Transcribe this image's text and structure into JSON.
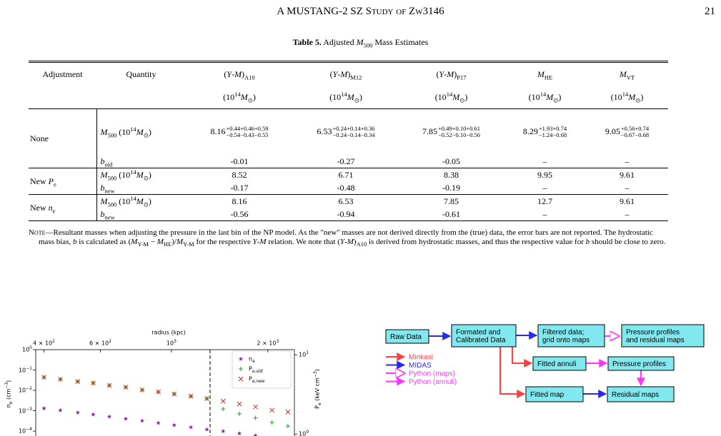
{
  "header": {
    "title": "A MUSTANG-2 SZ Study of Zw3146",
    "page": "21"
  },
  "table": {
    "caption": [
      {
        "b": "Table 5."
      },
      " Adjusted ",
      {
        "it": "M"
      },
      {
        "sub": "500"
      },
      " Mass Estimates"
    ],
    "columns": [
      "Adjustment",
      "Quantity",
      [
        "(",
        {
          "it": "Y"
        },
        "-",
        {
          "it": "M"
        },
        ")",
        {
          "sub": "A10"
        }
      ],
      [
        "(",
        {
          "it": "Y"
        },
        "-",
        {
          "it": "M"
        },
        ")",
        {
          "sub": "M12"
        }
      ],
      [
        "(",
        {
          "it": "Y"
        },
        "-",
        {
          "it": "M"
        },
        ")",
        {
          "sub": "P17"
        }
      ],
      [
        {
          "it": "M"
        },
        {
          "sub": "HE"
        }
      ],
      [
        {
          "it": "M"
        },
        {
          "sub": "VT"
        }
      ]
    ],
    "units": [
      [
        "(10",
        {
          "sup": "14"
        },
        {
          "it": "M"
        },
        {
          "sub": "⊙"
        },
        ")"
      ],
      [
        "(10",
        {
          "sup": "14"
        },
        {
          "it": "M"
        },
        {
          "sub": "⊙"
        },
        ")"
      ],
      [
        "(10",
        {
          "sup": "14"
        },
        {
          "it": "M"
        },
        {
          "sub": "⊙"
        },
        ")"
      ],
      [
        "(10",
        {
          "sup": "14"
        },
        {
          "it": "M"
        },
        {
          "sub": "⊙"
        },
        ")"
      ],
      [
        "(10",
        {
          "sup": "14"
        },
        {
          "it": "M"
        },
        {
          "sub": "⊙"
        },
        ")"
      ]
    ],
    "groups": [
      {
        "adjustment": "None",
        "rows": [
          [
            [
              {
                "it": "M"
              },
              {
                "sub": "500"
              },
              " (10",
              {
                "sup": "14"
              },
              {
                "it": "M"
              },
              {
                "sub": "⊙"
              },
              ")"
            ],
            [
              "8.16",
              {
                "sup": "+0.44+0.46+0.59",
                "sub": "−0.54−0.43−0.55"
              }
            ],
            [
              "6.53",
              {
                "sup": "+0.24+0.14+0.36",
                "sub": "−0.24−0.14−0.34"
              }
            ],
            [
              "7.85",
              {
                "sup": "+0.49+0.10+0.61",
                "sub": "−0.52−0.10−0.56"
              }
            ],
            [
              "8.29",
              {
                "sup": "+1.93+0.74",
                "sub": "−1.24−0.68"
              }
            ],
            [
              "9.05",
              {
                "sup": "+0.56+0.74",
                "sub": "−0.67−0.68"
              }
            ]
          ],
          [
            [
              {
                "it": "b"
              },
              {
                "sub": "old"
              }
            ],
            "-0.01",
            "-0.27",
            "-0.05",
            "–",
            "–"
          ]
        ]
      },
      {
        "adjustment": [
          "New ",
          {
            "it": "P"
          },
          {
            "sub": "e"
          }
        ],
        "rows": [
          [
            [
              {
                "it": "M"
              },
              {
                "sub": "500"
              },
              " (10",
              {
                "sup": "14"
              },
              {
                "it": "M"
              },
              {
                "sub": "⊙"
              },
              ")"
            ],
            "8.52",
            "6.71",
            "8.38",
            "9.95",
            "9.61"
          ],
          [
            [
              {
                "it": "b"
              },
              {
                "sub": "new"
              }
            ],
            "-0.17",
            "-0.48",
            "-0.19",
            "–",
            "–"
          ]
        ]
      },
      {
        "adjustment": [
          "New ",
          {
            "it": "n"
          },
          {
            "sub": "e"
          }
        ],
        "rows": [
          [
            [
              {
                "it": "M"
              },
              {
                "sub": "500"
              },
              " (10",
              {
                "sup": "14"
              },
              {
                "it": "M"
              },
              {
                "sub": "⊙"
              },
              ")"
            ],
            "8.16",
            "6.53",
            "7.85",
            "12.7",
            "9.61"
          ],
          [
            [
              {
                "it": "b"
              },
              {
                "sub": "new"
              }
            ],
            "-0.56",
            "-0.94",
            "-0.61",
            "–",
            "–"
          ]
        ]
      }
    ]
  },
  "note": [
    {
      "sc": "Note"
    },
    "—Resultant masses when adjusting the pressure in the last bin of the NP model. As the \"new\" masses are not derived directly from the (true) data, the error bars are not reported. The hydrostatic mass bias, ",
    {
      "it": "b"
    },
    " is calculated as (",
    {
      "it": "M"
    },
    {
      "sub": "Y-M"
    },
    " − ",
    {
      "it": "M"
    },
    {
      "sub": "HE"
    },
    ")/",
    {
      "it": "M"
    },
    {
      "sub": "Y-M"
    },
    " for the respective ",
    {
      "it": "Y"
    },
    "-",
    {
      "it": "M"
    },
    " relation. We note that (",
    {
      "it": "Y"
    },
    "-",
    {
      "it": "M"
    },
    ")",
    {
      "sub": "A10"
    },
    " is derived from hydrostatic masses, and thus the respective value for ",
    {
      "it": "b"
    },
    " should be close to zero."
  ],
  "figure": {
    "type": "scatter",
    "x_label": "radius (kpc)",
    "y_label": [
      "n",
      {
        "sub": "e"
      },
      " (cm",
      {
        "sup": "−3"
      },
      ")"
    ],
    "y2_label": [
      "P",
      {
        "sub": "e"
      },
      " (keV cm",
      {
        "sup": "−3"
      },
      ")"
    ],
    "log_x": true,
    "log_y": true,
    "xlim": [
      377,
      2420
    ],
    "ylim": [
      3e-05,
      1
    ],
    "y2lim": [
      0.8,
      11.6
    ],
    "xticks": [
      {
        "value": 400,
        "label": [
          "4 × 10",
          {
            "sup": "2"
          }
        ]
      },
      {
        "value": 600,
        "label": [
          "6 × 10",
          {
            "sup": "2"
          }
        ]
      },
      {
        "value": 1000,
        "label": [
          "10",
          {
            "sup": "3"
          }
        ]
      },
      {
        "value": 2000,
        "label": [
          "2 × 10",
          {
            "sup": "3"
          }
        ]
      }
    ],
    "yticks": [
      {
        "value": 1,
        "label": [
          "10",
          {
            "sup": "0"
          }
        ]
      },
      {
        "value": 0.1,
        "label": [
          "10",
          {
            "sup": "−1"
          }
        ]
      },
      {
        "value": 0.01,
        "label": [
          "10",
          {
            "sup": "−2"
          }
        ]
      },
      {
        "value": 0.001,
        "label": [
          "10",
          {
            "sup": "−3"
          }
        ]
      },
      {
        "value": 0.0001,
        "label": [
          "10",
          {
            "sup": "−4"
          }
        ]
      }
    ],
    "y2ticks": [
      {
        "value": 10,
        "label": [
          "10",
          {
            "sup": "1"
          }
        ]
      },
      {
        "value": 1,
        "label": [
          "10",
          {
            "sup": "0"
          }
        ]
      }
    ],
    "vline": 1320,
    "x": [
      400,
      450,
      510,
      570,
      640,
      720,
      810,
      910,
      1020,
      1150,
      1290,
      1450,
      1630,
      1830,
      2060,
      2310
    ],
    "series": [
      {
        "name": [
          "n",
          {
            "sub": "e"
          }
        ],
        "color": "#7b2a8e",
        "marker": "star",
        "values": [
          0.0013,
          0.00105,
          0.00081,
          0.00065,
          0.00051,
          0.0004,
          0.00032,
          0.00025,
          0.000195,
          0.000155,
          0.00012,
          9.8e-05,
          7.6e-05,
          6e-05,
          null,
          null
        ]
      },
      {
        "name": [
          "P",
          {
            "sub": {
              "it": "e,old"
            }
          }
        ],
        "color": "#2a9a2a",
        "marker": "plus",
        "axis": "y2",
        "values": [
          5.2,
          4.9,
          4.6,
          4.4,
          4.1,
          3.9,
          3.6,
          3.4,
          3.2,
          3.0,
          2.8,
          2.07,
          1.8,
          1.6,
          1.4,
          1.26
        ]
      },
      {
        "name": [
          "P",
          {
            "sub": {
              "it": "e,new"
            }
          }
        ],
        "color": "#d62728",
        "marker": "x",
        "axis": "y2",
        "values": [
          5.2,
          4.9,
          4.6,
          4.4,
          4.1,
          3.9,
          3.6,
          3.4,
          3.2,
          3.0,
          2.8,
          2.6,
          2.4,
          2.2,
          2.0,
          1.9
        ]
      }
    ]
  },
  "diagram": {
    "nodes": [
      {
        "label": [
          "Raw Data"
        ]
      },
      {
        "label": [
          "Formated and",
          "Calibrated Data"
        ]
      },
      {
        "label": [
          "Filtered data;",
          "grid onto maps"
        ]
      },
      {
        "label": [
          "Pressure profiles",
          "and residual maps"
        ]
      },
      {
        "label": [
          "Fitted annuli"
        ]
      },
      {
        "label": [
          "Pressure profiles"
        ]
      },
      {
        "label": [
          "Fitted map"
        ]
      },
      {
        "label": [
          "Residual maps"
        ]
      }
    ],
    "legend": [
      {
        "name": "Minkasi",
        "color": "#ff4040"
      },
      {
        "name": "MIDAS",
        "color": "#2a2aee"
      },
      {
        "name": "Python (maps)",
        "color": "#ff33ff"
      },
      {
        "name": "Python (annuli)",
        "color": "#ff33ff"
      }
    ]
  }
}
